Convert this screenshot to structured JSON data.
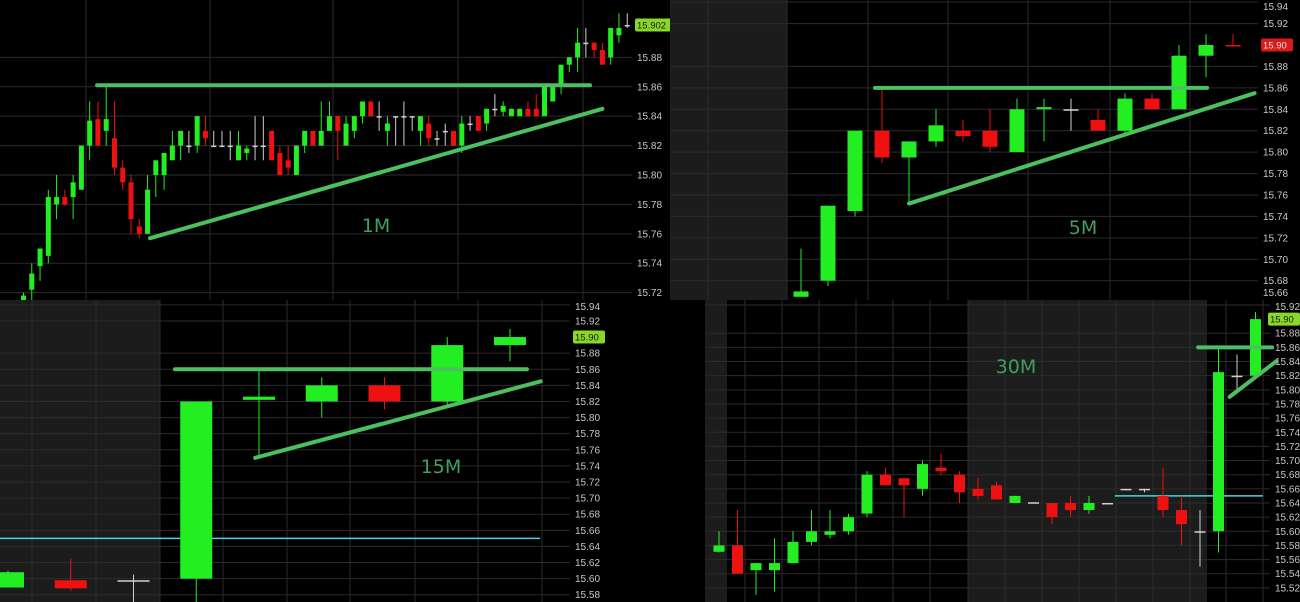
{
  "colors": {
    "up": "#22ee22",
    "down": "#ee1111",
    "doji": "#d0d0d0",
    "trendline": "#4cc060",
    "level": "#40d8e8",
    "grid": "#2b2b2b",
    "background": "#000000",
    "session_shade": "#1c1c1c"
  },
  "chart_data": [
    {
      "type": "candlestick",
      "timeframe_label": "1M",
      "ylim": [
        15.715,
        15.919
      ],
      "yticks": [
        "15.72",
        "15.74",
        "15.76",
        "15.78",
        "15.80",
        "15.82",
        "15.84",
        "15.86",
        "15.88"
      ],
      "last_price": {
        "text": "15.902",
        "value": 15.902,
        "color": "#8bd62a"
      },
      "candles": [
        [
          15.715,
          15.72,
          15.712,
          15.718
        ],
        [
          15.722,
          15.74,
          15.71,
          15.733
        ],
        [
          15.738,
          15.75,
          15.728,
          15.75
        ],
        [
          15.745,
          15.79,
          15.74,
          15.785
        ],
        [
          15.78,
          15.8,
          15.77,
          15.785
        ],
        [
          15.785,
          15.79,
          15.779,
          15.78
        ],
        [
          15.785,
          15.8,
          15.77,
          15.795
        ],
        [
          15.79,
          15.82,
          15.79,
          15.82
        ],
        [
          15.82,
          15.85,
          15.81,
          15.837
        ],
        [
          15.838,
          15.85,
          15.82,
          15.82
        ],
        [
          15.83,
          15.86,
          15.82,
          15.838
        ],
        [
          15.825,
          15.85,
          15.8,
          15.805
        ],
        [
          15.805,
          15.81,
          15.79,
          15.795
        ],
        [
          15.795,
          15.8,
          15.76,
          15.77
        ],
        [
          15.765,
          15.77,
          15.757,
          15.76
        ],
        [
          15.76,
          15.8,
          15.76,
          15.79
        ],
        [
          15.8,
          15.81,
          15.785,
          15.81
        ],
        [
          15.8,
          15.815,
          15.79,
          15.815
        ],
        [
          15.81,
          15.83,
          15.81,
          15.82
        ],
        [
          15.82,
          15.83,
          15.81,
          15.83
        ],
        [
          15.82,
          15.83,
          15.815,
          15.82
        ],
        [
          15.82,
          15.84,
          15.815,
          15.84
        ],
        [
          15.83,
          15.84,
          15.82,
          15.825
        ],
        [
          15.82,
          15.83,
          15.82,
          15.82
        ],
        [
          15.82,
          15.83,
          15.82,
          15.82
        ],
        [
          15.82,
          15.83,
          15.81,
          15.82
        ],
        [
          15.81,
          15.83,
          15.81,
          15.82
        ],
        [
          15.815,
          15.82,
          15.81,
          15.818
        ],
        [
          15.82,
          15.84,
          15.81,
          15.82
        ],
        [
          15.82,
          15.84,
          15.81,
          15.82
        ],
        [
          15.83,
          15.83,
          15.81,
          15.81
        ],
        [
          15.815,
          15.82,
          15.8,
          15.8
        ],
        [
          15.81,
          15.82,
          15.8,
          15.805
        ],
        [
          15.8,
          15.82,
          15.8,
          15.82
        ],
        [
          15.82,
          15.83,
          15.815,
          15.83
        ],
        [
          15.83,
          15.83,
          15.82,
          15.82
        ],
        [
          15.82,
          15.85,
          15.82,
          15.83
        ],
        [
          15.83,
          15.85,
          15.83,
          15.84
        ],
        [
          15.84,
          15.84,
          15.81,
          15.83
        ],
        [
          15.82,
          15.84,
          15.82,
          15.835
        ],
        [
          15.83,
          15.84,
          15.825,
          15.84
        ],
        [
          15.84,
          15.85,
          15.835,
          15.85
        ],
        [
          15.85,
          15.85,
          15.84,
          15.84
        ],
        [
          15.84,
          15.85,
          15.83,
          15.84
        ],
        [
          15.83,
          15.84,
          15.82,
          15.835
        ],
        [
          15.84,
          15.84,
          15.82,
          15.84
        ],
        [
          15.84,
          15.85,
          15.82,
          15.84
        ],
        [
          15.84,
          15.84,
          15.83,
          15.84
        ],
        [
          15.83,
          15.84,
          15.82,
          15.84
        ],
        [
          15.835,
          15.84,
          15.82,
          15.825
        ],
        [
          15.825,
          15.83,
          15.82,
          15.825
        ],
        [
          15.83,
          15.835,
          15.82,
          15.83
        ],
        [
          15.83,
          15.83,
          15.82,
          15.82
        ],
        [
          15.82,
          15.84,
          15.815,
          15.835
        ],
        [
          15.835,
          15.84,
          15.83,
          15.835
        ],
        [
          15.84,
          15.84,
          15.83,
          15.83
        ],
        [
          15.835,
          15.845,
          15.83,
          15.845
        ],
        [
          15.845,
          15.855,
          15.84,
          15.845
        ],
        [
          15.843,
          15.85,
          15.84,
          15.847
        ],
        [
          15.84,
          15.845,
          15.84,
          15.845
        ],
        [
          15.84,
          15.845,
          15.84,
          15.845
        ],
        [
          15.845,
          15.85,
          15.84,
          15.84
        ],
        [
          15.845,
          15.855,
          15.84,
          15.84
        ],
        [
          15.84,
          15.86,
          15.84,
          15.86
        ],
        [
          15.85,
          15.86,
          15.85,
          15.86
        ],
        [
          15.86,
          15.875,
          15.855,
          15.875
        ],
        [
          15.875,
          15.88,
          15.87,
          15.88
        ],
        [
          15.88,
          15.9,
          15.87,
          15.89
        ],
        [
          15.89,
          15.9,
          15.88,
          15.89
        ],
        [
          15.89,
          15.89,
          15.88,
          15.885
        ],
        [
          15.885,
          15.89,
          15.875,
          15.875
        ],
        [
          15.88,
          15.9,
          15.875,
          15.9
        ],
        [
          15.895,
          15.91,
          15.89,
          15.9
        ],
        [
          15.902,
          15.91,
          15.9,
          15.902
        ]
      ],
      "lines": [
        {
          "kind": "resistance",
          "from": [
            8.9,
            15.861
          ],
          "to": [
            68.5,
            15.861
          ]
        },
        {
          "kind": "support",
          "from": [
            15.3,
            15.757
          ],
          "to": [
            70,
            15.845
          ]
        }
      ]
    },
    {
      "type": "candlestick",
      "timeframe_label": "5M",
      "ylim": [
        15.662,
        15.942
      ],
      "yticks": [
        "15.66",
        "15.68",
        "15.70",
        "15.72",
        "15.74",
        "15.76",
        "15.78",
        "15.80",
        "15.82",
        "15.84",
        "15.86",
        "15.88",
        "15.92",
        "15.94"
      ],
      "last_price": {
        "text": "15.90",
        "value": 15.9,
        "color": "#d41a1a"
      },
      "candles": [
        [
          15.665,
          15.71,
          15.665,
          15.67
        ],
        [
          15.68,
          15.75,
          15.675,
          15.75
        ],
        [
          15.745,
          15.82,
          15.74,
          15.82
        ],
        [
          15.82,
          15.86,
          15.79,
          15.795
        ],
        [
          15.795,
          15.81,
          15.752,
          15.81
        ],
        [
          15.81,
          15.84,
          15.805,
          15.825
        ],
        [
          15.82,
          15.83,
          15.81,
          15.815
        ],
        [
          15.82,
          15.84,
          15.8,
          15.805
        ],
        [
          15.8,
          15.85,
          15.8,
          15.84
        ],
        [
          15.84,
          15.85,
          15.81,
          15.842
        ],
        [
          15.84,
          15.85,
          15.82,
          15.84
        ],
        [
          15.83,
          15.84,
          15.82,
          15.82
        ],
        [
          15.82,
          15.855,
          15.815,
          15.85
        ],
        [
          15.85,
          15.855,
          15.84,
          15.84
        ],
        [
          15.84,
          15.9,
          15.84,
          15.89
        ],
        [
          15.89,
          15.91,
          15.87,
          15.9
        ],
        [
          15.9,
          15.91,
          15.9,
          15.8995
        ]
      ],
      "lines": [
        {
          "kind": "resistance",
          "from": [
            2.74,
            15.86
          ],
          "to": [
            15.04,
            15.86
          ]
        },
        {
          "kind": "support",
          "from": [
            4,
            15.752
          ],
          "to": [
            16.8,
            15.855
          ]
        }
      ]
    },
    {
      "type": "candlestick",
      "timeframe_label": "15M",
      "ylim": [
        15.571,
        15.946
      ],
      "yticks": [
        "15.58",
        "15.60",
        "15.62",
        "15.64",
        "15.66",
        "15.68",
        "15.70",
        "15.72",
        "15.74",
        "15.76",
        "15.78",
        "15.80",
        "15.82",
        "15.84",
        "15.86",
        "15.88",
        "15.92",
        "15.94"
      ],
      "last_price": {
        "text": "15.90",
        "value": 15.9,
        "color": "#8bd62a"
      },
      "candles": [
        [
          15.589,
          15.61,
          15.589,
          15.608
        ],
        [
          15.598,
          15.625,
          15.585,
          15.588
        ],
        [
          15.598,
          15.605,
          15.57,
          15.598
        ],
        [
          15.6,
          15.82,
          15.57,
          15.82
        ],
        [
          15.822,
          15.86,
          15.75,
          15.826
        ],
        [
          15.82,
          15.85,
          15.8,
          15.84
        ],
        [
          15.84,
          15.85,
          15.81,
          15.82
        ],
        [
          15.82,
          15.9,
          15.815,
          15.89
        ],
        [
          15.89,
          15.91,
          15.87,
          15.9
        ]
      ],
      "lines": [
        {
          "kind": "level",
          "from": [
            -0.2,
            15.65
          ],
          "to": [
            8.48,
            15.65
          ]
        },
        {
          "kind": "resistance",
          "from": [
            2.66,
            15.86
          ],
          "to": [
            8.27,
            15.86
          ]
        },
        {
          "kind": "support",
          "from": [
            3.94,
            15.75
          ],
          "to": [
            8.49,
            15.845
          ]
        }
      ]
    },
    {
      "type": "candlestick",
      "timeframe_label": "30M",
      "ylim": [
        15.5,
        15.927
      ],
      "yticks": [
        "15.52",
        "15.54",
        "15.56",
        "15.58",
        "15.60",
        "15.62",
        "15.64",
        "15.66",
        "15.68",
        "15.70",
        "15.72",
        "15.74",
        "15.76",
        "15.78",
        "15.80",
        "15.82",
        "15.84",
        "15.86",
        "15.88",
        "15.92"
      ],
      "last_price": {
        "text": "15.90",
        "value": 15.9,
        "color": "#8bd62a"
      },
      "candles": [
        [
          15.571,
          15.6,
          15.57,
          15.58
        ],
        [
          15.58,
          15.63,
          15.54,
          15.54
        ],
        [
          15.545,
          15.555,
          15.51,
          15.555
        ],
        [
          15.545,
          15.59,
          15.515,
          15.555
        ],
        [
          15.555,
          15.6,
          15.555,
          15.585
        ],
        [
          15.585,
          15.63,
          15.58,
          15.6
        ],
        [
          15.595,
          15.63,
          15.59,
          15.6
        ],
        [
          15.6,
          15.625,
          15.595,
          15.62
        ],
        [
          15.625,
          15.685,
          15.62,
          15.68
        ],
        [
          15.68,
          15.69,
          15.665,
          15.665
        ],
        [
          15.675,
          15.675,
          15.62,
          15.665
        ],
        [
          15.66,
          15.7,
          15.65,
          15.695
        ],
        [
          15.69,
          15.71,
          15.68,
          15.685
        ],
        [
          15.68,
          15.685,
          15.64,
          15.655
        ],
        [
          15.66,
          15.675,
          15.645,
          15.65
        ],
        [
          15.665,
          15.67,
          15.645,
          15.645
        ],
        [
          15.64,
          15.65,
          15.64,
          15.65
        ],
        [
          15.641,
          15.641,
          15.64,
          15.64
        ],
        [
          15.64,
          15.64,
          15.61,
          15.62
        ],
        [
          15.64,
          15.65,
          15.62,
          15.63
        ],
        [
          15.63,
          15.65,
          15.625,
          15.64
        ],
        [
          15.64,
          15.64,
          15.64,
          15.64
        ],
        [
          15.66,
          15.66,
          15.66,
          15.66
        ],
        [
          15.66,
          15.66,
          15.655,
          15.66
        ],
        [
          15.65,
          15.69,
          15.62,
          15.63
        ],
        [
          15.63,
          15.65,
          15.58,
          15.61
        ],
        [
          15.6,
          15.63,
          15.55,
          15.6
        ],
        [
          15.6,
          15.86,
          15.57,
          15.825
        ],
        [
          15.82,
          15.85,
          15.8,
          15.82
        ],
        [
          15.82,
          15.91,
          15.82,
          15.9
        ]
      ],
      "lines": [
        {
          "kind": "level",
          "from": [
            21.4,
            15.65
          ],
          "to": [
            29.4,
            15.65
          ]
        },
        {
          "kind": "resistance",
          "from": [
            25.9,
            15.86
          ],
          "to": [
            29.9,
            15.86
          ]
        },
        {
          "kind": "support",
          "from": [
            27.6,
            15.79
          ],
          "to": [
            30.1,
            15.84
          ]
        }
      ]
    }
  ]
}
